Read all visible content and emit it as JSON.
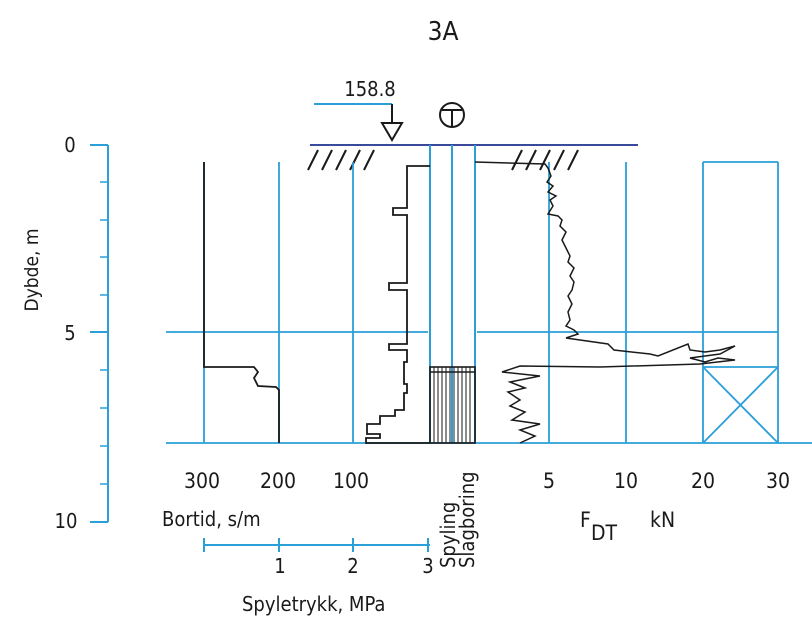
{
  "title": "3A",
  "elevation": "158.8",
  "depth_axis": {
    "label": "Dybde, m",
    "ticks": [
      "0",
      "5",
      "10"
    ],
    "values": [
      0,
      5,
      10
    ]
  },
  "bortid_axis": {
    "label": "Bortid, s/m",
    "ticks": [
      "300",
      "200",
      "100"
    ],
    "values": [
      300,
      200,
      100
    ]
  },
  "spyletrykk_axis": {
    "label": "Spyletrykk, MPa",
    "ticks": [
      "1",
      "2",
      "3"
    ],
    "values": [
      1,
      2,
      3
    ]
  },
  "center_labels": {
    "spyling": "Spyling",
    "slagboring": "Slagboring"
  },
  "fdt_axis": {
    "label_main": "F",
    "label_sub": "DT",
    "unit": "kN",
    "ticks": [
      "5",
      "10",
      "20",
      "30"
    ],
    "values": [
      5,
      10,
      20,
      30
    ]
  },
  "colors": {
    "grid": "#2a9fd8",
    "ink": "#1a1a1a"
  }
}
